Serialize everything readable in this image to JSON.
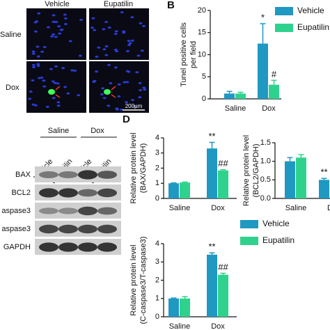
{
  "panel_a": {
    "columns": [
      "Vehicle",
      "Eupatilin"
    ],
    "rows": [
      "Saline",
      "Dox"
    ],
    "scale_bar": "200μm"
  },
  "panel_c": {
    "groups": [
      "Saline",
      "Dox"
    ],
    "lanes": [
      "Vehicle",
      "Eupatilin",
      "Vehicle",
      "Eupatilin"
    ],
    "rows": [
      "BAX",
      "BCL2",
      "aspase3",
      "aspase3",
      "GAPDH"
    ]
  },
  "chart_data": [
    {
      "type": "bar",
      "panel": "B",
      "ylabel": [
        "Tunel positive cells",
        "per field"
      ],
      "categories": [
        "Saline",
        "Dox"
      ],
      "series": [
        {
          "name": "Vehicle",
          "color": "#1f98c2",
          "values": [
            1.2,
            12.5
          ],
          "errors": [
            0.5,
            4.5
          ],
          "marks": [
            null,
            "*"
          ]
        },
        {
          "name": "Eupatilin",
          "color": "#2fd28c",
          "values": [
            1.2,
            3.2
          ],
          "errors": [
            0.3,
            1.0
          ],
          "marks": [
            null,
            "#"
          ]
        }
      ],
      "ylim": [
        0,
        20
      ],
      "yticks": [
        0,
        5,
        10,
        15,
        20
      ],
      "legend": "upper right"
    },
    {
      "type": "bar",
      "panel": "D",
      "ylabel": [
        "Relative protein level",
        "(BAX/GAPDH)"
      ],
      "categories": [
        "Saline",
        "Dox"
      ],
      "series": [
        {
          "name": "Vehicle",
          "color": "#1f98c2",
          "values": [
            1.0,
            3.3
          ],
          "errors": [
            0.03,
            0.4
          ],
          "marks": [
            null,
            "**"
          ]
        },
        {
          "name": "Eupatilin",
          "color": "#2fd28c",
          "values": [
            1.05,
            1.85
          ],
          "errors": [
            0.03,
            0.05
          ],
          "marks": [
            null,
            "##"
          ]
        }
      ],
      "ylim": [
        0,
        4
      ],
      "yticks": [
        0,
        1,
        2,
        3,
        4
      ]
    },
    {
      "type": "bar",
      "ylabel": [
        "Relative protein level",
        "(BCL2/GAPDH)"
      ],
      "categories": [
        "Saline",
        "D"
      ],
      "series": [
        {
          "name": "Vehicle",
          "color": "#1f98c2",
          "values": [
            1.0,
            0.5
          ],
          "errors": [
            0.1,
            0.04
          ],
          "marks": [
            null,
            "**"
          ]
        },
        {
          "name": "Eupatilin",
          "color": "#2fd28c",
          "values": [
            1.1,
            null
          ],
          "errors": [
            0.08,
            null
          ],
          "marks": [
            null,
            null
          ]
        }
      ],
      "ylim": [
        0,
        1.5
      ],
      "yticks": [
        {
          "value": 0,
          "label": "0.0"
        },
        {
          "value": 0.5,
          "label": "0.5"
        },
        {
          "value": 1,
          "label": "1.0"
        },
        {
          "value": 1.5,
          "label": "1.5"
        }
      ]
    },
    {
      "type": "bar",
      "ylabel": [
        "Relative protein level",
        "(C-caspase3/T-caspase3)"
      ],
      "categories": [
        "Saline",
        "Dox"
      ],
      "series": [
        {
          "name": "Vehicle",
          "color": "#1f98c2",
          "values": [
            1.0,
            3.4
          ],
          "errors": [
            0.03,
            0.1
          ],
          "marks": [
            null,
            "**"
          ]
        },
        {
          "name": "Eupatilin",
          "color": "#2fd28c",
          "values": [
            1.0,
            2.3
          ],
          "errors": [
            0.1,
            0.08
          ],
          "marks": [
            null,
            "##"
          ]
        }
      ],
      "ylim": [
        0,
        4
      ],
      "yticks": [
        0,
        1,
        2,
        3,
        4
      ],
      "legend": "right"
    }
  ]
}
